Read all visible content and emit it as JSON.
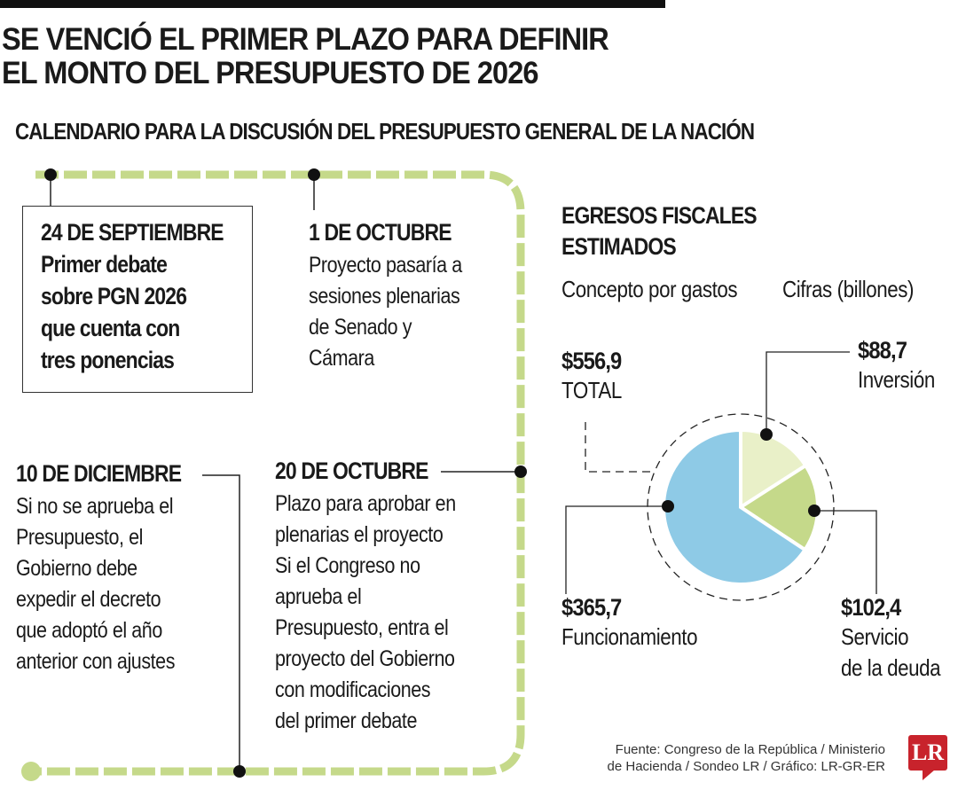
{
  "headline": [
    "SE VENCIÓ EL PRIMER PLAZO PARA DEFINIR",
    "EL MONTO DEL PRESUPUESTO DE 2026"
  ],
  "subheadline": "CALENDARIO PARA LA DISCUSIÓN DEL PRESUPUESTO GENERAL DE LA NACIÓN",
  "timeline": [
    {
      "date": "24 DE SEPTIEMBRE",
      "lines": [
        "Primer debate",
        "sobre PGN 2026",
        "que cuenta con",
        "tres ponencias"
      ]
    },
    {
      "date": "1 DE OCTUBRE",
      "lines": [
        "Proyecto pasaría a",
        "sesiones plenarias",
        "de Senado y",
        "Cámara"
      ]
    },
    {
      "date": "20 DE OCTUBRE",
      "lines": [
        "Plazo para aprobar en",
        "plenarias el proyecto",
        "Si el Congreso no",
        "aprueba el",
        "Presupuesto, entra el",
        "proyecto del Gobierno",
        "con modificaciones",
        "del primer debate"
      ]
    },
    {
      "date": "10 DE DICIEMBRE",
      "lines": [
        "Si no se aprueba el",
        "Presupuesto, el",
        "Gobierno debe",
        "expedir el decreto",
        "que adoptó el año",
        "anterior con ajustes"
      ]
    }
  ],
  "timeline_color": "#c5d98a",
  "chart_data": {
    "type": "pie",
    "title": [
      "EGRESOS FISCALES",
      "ESTIMADOS"
    ],
    "concept_label": "Concepto por gastos",
    "unit_label": "Cifras (billones)",
    "total": {
      "value": "$556,9",
      "label": "TOTAL"
    },
    "slices": [
      {
        "name": "Inversión",
        "value": 88.7,
        "value_label": "$88,7",
        "label_lines": [
          "Inversión"
        ],
        "color": "#e9f0c8"
      },
      {
        "name": "Servicio de la deuda",
        "value": 102.4,
        "value_label": "$102,4",
        "label_lines": [
          "Servicio",
          "de la deuda"
        ],
        "color": "#c5d98a"
      },
      {
        "name": "Funcionamiento",
        "value": 365.7,
        "value_label": "$365,7",
        "label_lines": [
          "Funcionamiento"
        ],
        "color": "#8ecae6"
      }
    ]
  },
  "source": [
    "Fuente: Congreso de la República / Ministerio",
    "de Hacienda / Sondeo LR / Gráfico: LR-GR-ER"
  ],
  "logo": "LR"
}
